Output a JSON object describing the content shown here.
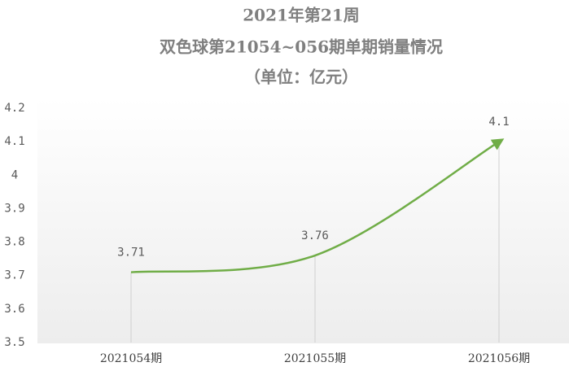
{
  "chart_data": {
    "type": "line",
    "title": "2021年第21周",
    "subtitle": "双色球第21054~056期单期销量情况",
    "unit_note": "（单位：亿元）",
    "categories": [
      "2021054期",
      "2021055期",
      "2021056期"
    ],
    "values": [
      3.71,
      3.76,
      4.1
    ],
    "color": "#70ad47",
    "ylim": [
      3.5,
      4.2
    ],
    "yticks": [
      3.5,
      3.6,
      3.7,
      3.8,
      3.9,
      4,
      4.1,
      4.2
    ],
    "smooth": true,
    "drop_lines": true
  }
}
